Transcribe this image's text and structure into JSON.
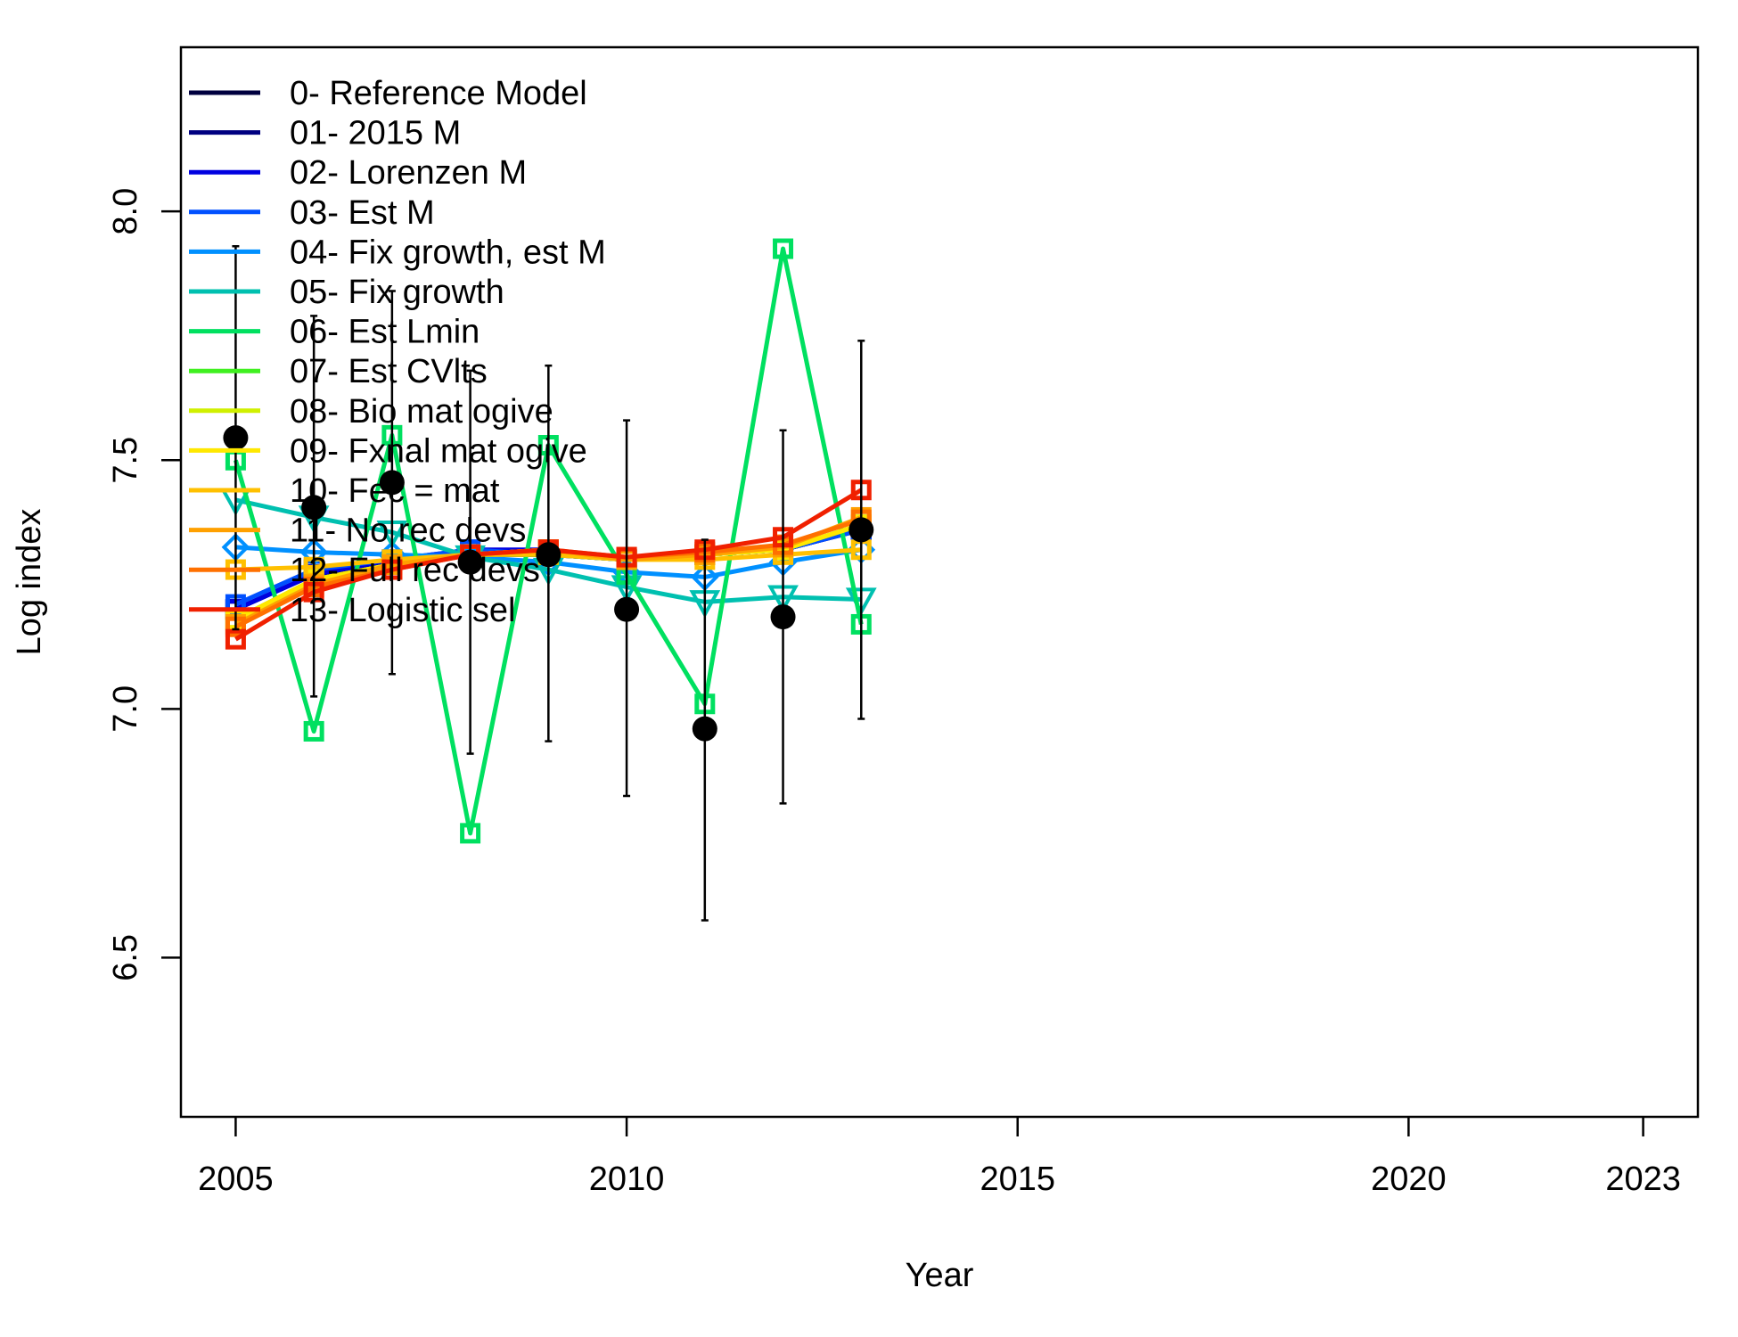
{
  "chart_data": {
    "type": "line",
    "xlabel": "Year",
    "ylabel": "Log index",
    "xlim": [
      2004.3,
      2023.7
    ],
    "ylim": [
      6.18,
      8.33
    ],
    "x_ticks": [
      2005,
      2010,
      2015,
      2020,
      2023
    ],
    "x_tick_labels": [
      "2005",
      "2010",
      "2015",
      "2020",
      "2023"
    ],
    "y_ticks": [
      6.5,
      7.0,
      7.5,
      8.0
    ],
    "y_tick_labels": [
      "6.5",
      "7.0",
      "7.5",
      "8.0"
    ],
    "legend_position": "top-left",
    "x": [
      2005,
      2006,
      2007,
      2008,
      2009,
      2010,
      2011,
      2012,
      2013
    ],
    "observed": {
      "y": [
        7.545,
        7.405,
        7.455,
        7.295,
        7.31,
        7.2,
        6.96,
        7.185,
        7.36
      ],
      "lower": [
        7.16,
        7.025,
        7.07,
        6.91,
        6.935,
        6.825,
        6.575,
        6.81,
        6.98
      ],
      "upper": [
        7.93,
        7.79,
        7.84,
        7.68,
        7.69,
        7.58,
        7.34,
        7.56,
        7.74
      ],
      "color": "#000000"
    },
    "series": [
      {
        "name": "0- Reference Model",
        "color": "#00003F",
        "marker": "square",
        "values": [
          7.2,
          7.27,
          7.29,
          7.31,
          7.31,
          7.3,
          7.31,
          7.32,
          7.36
        ]
      },
      {
        "name": "01- 2015 M",
        "color": "#000080",
        "marker": "square",
        "values": [
          7.2,
          7.27,
          7.29,
          7.31,
          7.31,
          7.3,
          7.31,
          7.32,
          7.36
        ]
      },
      {
        "name": "02- Lorenzen M",
        "color": "#0000E0",
        "marker": "square",
        "values": [
          7.2,
          7.27,
          7.3,
          7.32,
          7.32,
          7.3,
          7.31,
          7.32,
          7.36
        ]
      },
      {
        "name": "03- Est M",
        "color": "#0050FF",
        "marker": "square",
        "values": [
          7.21,
          7.28,
          7.3,
          7.32,
          7.31,
          7.3,
          7.31,
          7.32,
          7.36
        ]
      },
      {
        "name": "04- Fix growth, est M",
        "color": "#0090FF",
        "marker": "diamond",
        "values": [
          7.325,
          7.315,
          7.31,
          7.305,
          7.295,
          7.275,
          7.265,
          7.295,
          7.32
        ]
      },
      {
        "name": "05- Fix growth",
        "color": "#00C0B0",
        "marker": "triangle-down",
        "values": [
          7.42,
          7.385,
          7.355,
          7.305,
          7.28,
          7.245,
          7.215,
          7.225,
          7.22
        ]
      },
      {
        "name": "06- Est Lmin",
        "color": "#00E060",
        "marker": "square",
        "values": [
          7.5,
          6.955,
          7.55,
          6.75,
          7.53,
          7.27,
          7.01,
          7.925,
          7.17
        ]
      },
      {
        "name": "07- Est CVlts",
        "color": "#40F020",
        "marker": "square",
        "values": [
          7.18,
          7.26,
          7.29,
          7.31,
          7.31,
          7.3,
          7.31,
          7.32,
          7.37
        ]
      },
      {
        "name": "08- Bio mat ogive",
        "color": "#D0F000",
        "marker": "square",
        "values": [
          7.18,
          7.26,
          7.29,
          7.31,
          7.32,
          7.3,
          7.31,
          7.32,
          7.37
        ]
      },
      {
        "name": "09- Fxnal mat ogive",
        "color": "#FFE800",
        "marker": "square",
        "values": [
          7.18,
          7.26,
          7.29,
          7.31,
          7.32,
          7.3,
          7.31,
          7.32,
          7.37
        ]
      },
      {
        "name": "10- Fec = mat",
        "color": "#FFC000",
        "marker": "square",
        "values": [
          7.28,
          7.285,
          7.3,
          7.31,
          7.31,
          7.3,
          7.3,
          7.31,
          7.32
        ]
      },
      {
        "name": "11- No rec devs",
        "color": "#FFA000",
        "marker": "square",
        "values": [
          7.17,
          7.25,
          7.29,
          7.31,
          7.32,
          7.3,
          7.31,
          7.325,
          7.385
        ]
      },
      {
        "name": "12- Full rec devs",
        "color": "#FF7000",
        "marker": "square",
        "values": [
          7.165,
          7.245,
          7.28,
          7.31,
          7.32,
          7.305,
          7.315,
          7.33,
          7.38
        ]
      },
      {
        "name": "13- Logistic sel",
        "color": "#F02000",
        "marker": "square",
        "values": [
          7.14,
          7.235,
          7.28,
          7.31,
          7.32,
          7.305,
          7.32,
          7.345,
          7.44
        ]
      }
    ]
  }
}
